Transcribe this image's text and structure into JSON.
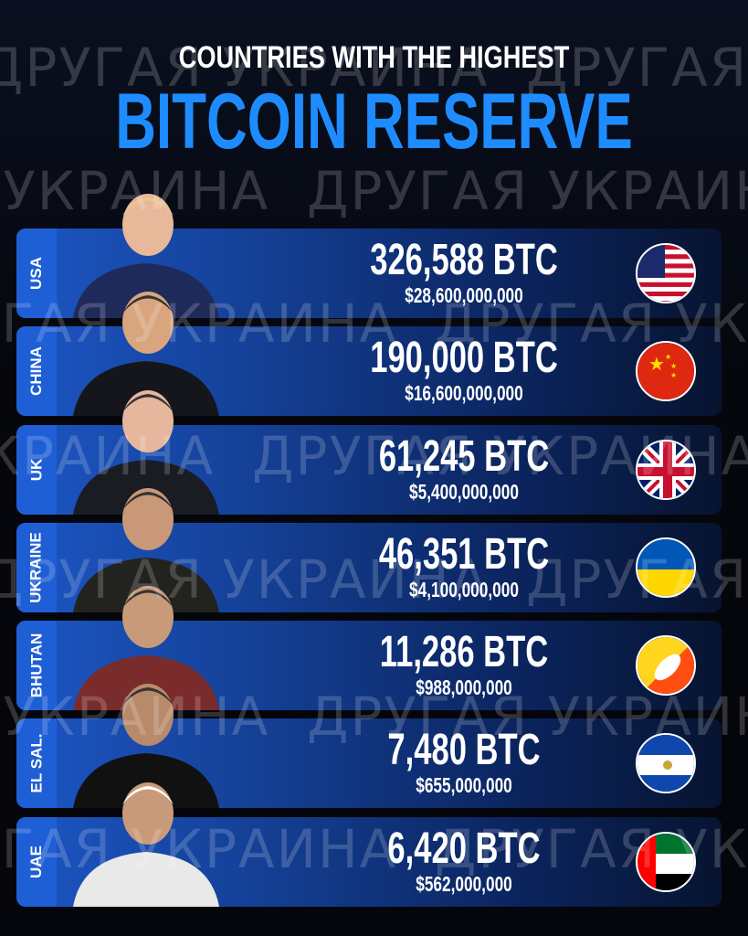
{
  "header": {
    "subtitle": "COUNTRIES WITH THE HIGHEST",
    "title": "BITCOIN RESERVE"
  },
  "watermark": "ДРУГАЯ УКРАИНА",
  "colors": {
    "accent": "#1e8cff",
    "bar": "#1c56c4"
  },
  "rows": [
    {
      "country": "USA",
      "btc": "326,588 BTC",
      "usd": "$28,600,000,000",
      "flag": "usa-flag"
    },
    {
      "country": "CHINA",
      "btc": "190,000 BTC",
      "usd": "$16,600,000,000",
      "flag": "china-flag"
    },
    {
      "country": "UK",
      "btc": "61,245 BTC",
      "usd": "$5,400,000,000",
      "flag": "uk-flag"
    },
    {
      "country": "UKRAINE",
      "btc": "46,351 BTC",
      "usd": "$4,100,000,000",
      "flag": "ukraine-flag"
    },
    {
      "country": "BHUTAN",
      "btc": "11,286 BTC",
      "usd": "$988,000,000",
      "flag": "bhutan-flag"
    },
    {
      "country": "EL SAL.",
      "btc": "7,480 BTC",
      "usd": "$655,000,000",
      "flag": "el-salvador-flag"
    },
    {
      "country": "UAE",
      "btc": "6,420 BTC",
      "usd": "$562,000,000",
      "flag": "uae-flag"
    }
  ]
}
